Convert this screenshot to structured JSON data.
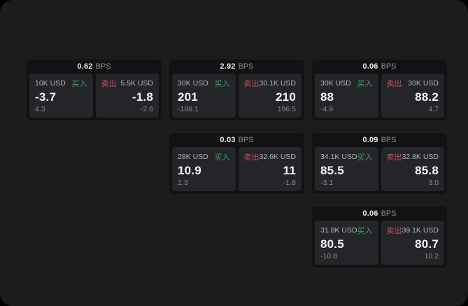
{
  "labels": {
    "bps_unit": "BPS",
    "buy": "买入",
    "sell": "卖出"
  },
  "colors": {
    "page_bg": "#1c1c1d",
    "card_bg": "#121214",
    "panel_bg": "#242528",
    "buy_green": "#3f9e68",
    "sell_red": "#c55062"
  },
  "cards": [
    {
      "bps": "0.62",
      "buy": {
        "notional": "10K USD",
        "price": "-3.7",
        "delta": "4.3"
      },
      "sell": {
        "notional": "5.5K USD",
        "price": "-1.8",
        "delta": "-2.6"
      }
    },
    {
      "bps": "2.92",
      "buy": {
        "notional": "30K USD",
        "price": "201",
        "delta": "-188.1"
      },
      "sell": {
        "notional": "30.1K USD",
        "price": "210",
        "delta": "196.5"
      }
    },
    {
      "bps": "0.06",
      "buy": {
        "notional": "30K USD",
        "price": "88",
        "delta": "-4.9"
      },
      "sell": {
        "notional": "30K USD",
        "price": "88.2",
        "delta": "4.7"
      }
    },
    {
      "bps": "0.03",
      "buy": {
        "notional": "28K USD",
        "price": "10.9",
        "delta": "1.3"
      },
      "sell": {
        "notional": "32.6K USD",
        "price": "11",
        "delta": "-1.8"
      }
    },
    {
      "bps": "0.09",
      "buy": {
        "notional": "34.1K USD",
        "price": "85.5",
        "delta": "-3.1"
      },
      "sell": {
        "notional": "32.8K USD",
        "price": "85.8",
        "delta": "3.0"
      }
    },
    {
      "bps": "0.06",
      "buy": {
        "notional": "31.8K USD",
        "price": "80.5",
        "delta": "-10.8"
      },
      "sell": {
        "notional": "39.1K USD",
        "price": "80.7",
        "delta": "10.2"
      }
    }
  ]
}
